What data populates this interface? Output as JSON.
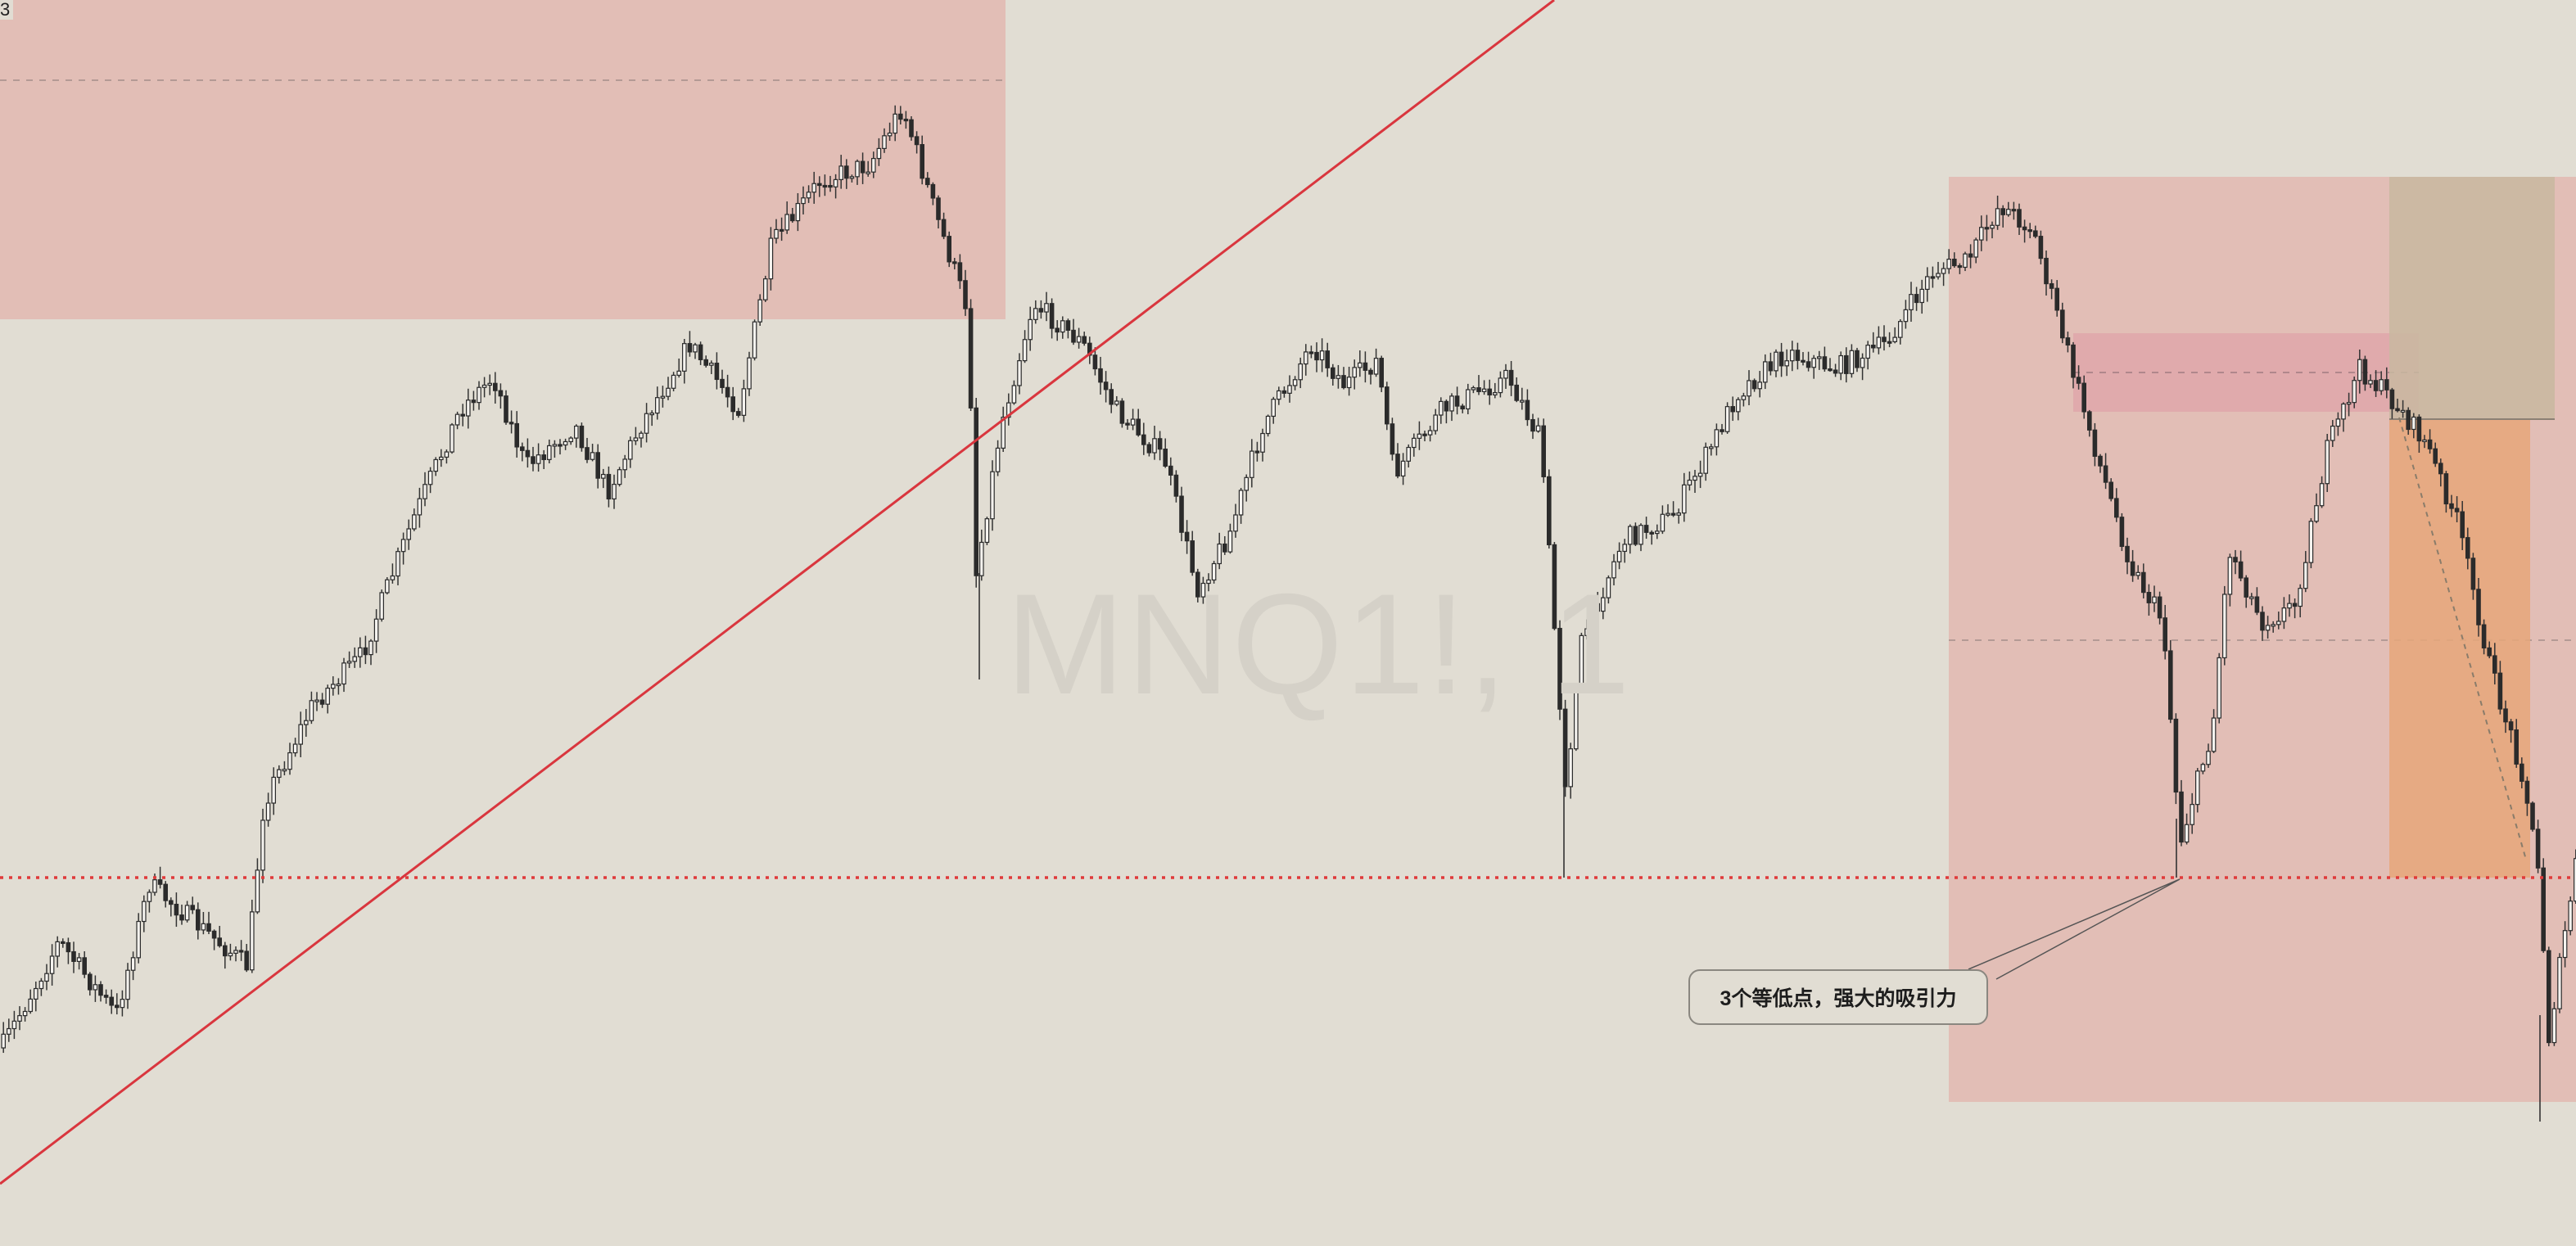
{
  "symbol_watermark": "MNQ1!, 1",
  "corner_label": "3",
  "annotation": {
    "text": "3个等低点，强大的吸引力"
  },
  "colors": {
    "background": "#e1ddd3",
    "supply_zone": "#e2b9b0",
    "trendline": "#d9363e",
    "support_line": "#e03a3a",
    "short_risk_zone": "#bfae98",
    "short_reward_zone": "#e6a77a",
    "candle_up": "#f4f2ee",
    "candle_down": "#2b2b2b",
    "wick": "#333333"
  },
  "drawings": {
    "trendline": {
      "type": "ray",
      "direction": "up-right"
    },
    "support_level": {
      "type": "horizontal-line",
      "style": "dotted"
    },
    "supply_zones": 3,
    "short_position_tool": {
      "type": "short-position"
    }
  },
  "chart_data": {
    "type": "candlestick",
    "symbol": "MNQ1!",
    "interval": "1",
    "grid": false,
    "legend": "none"
  }
}
